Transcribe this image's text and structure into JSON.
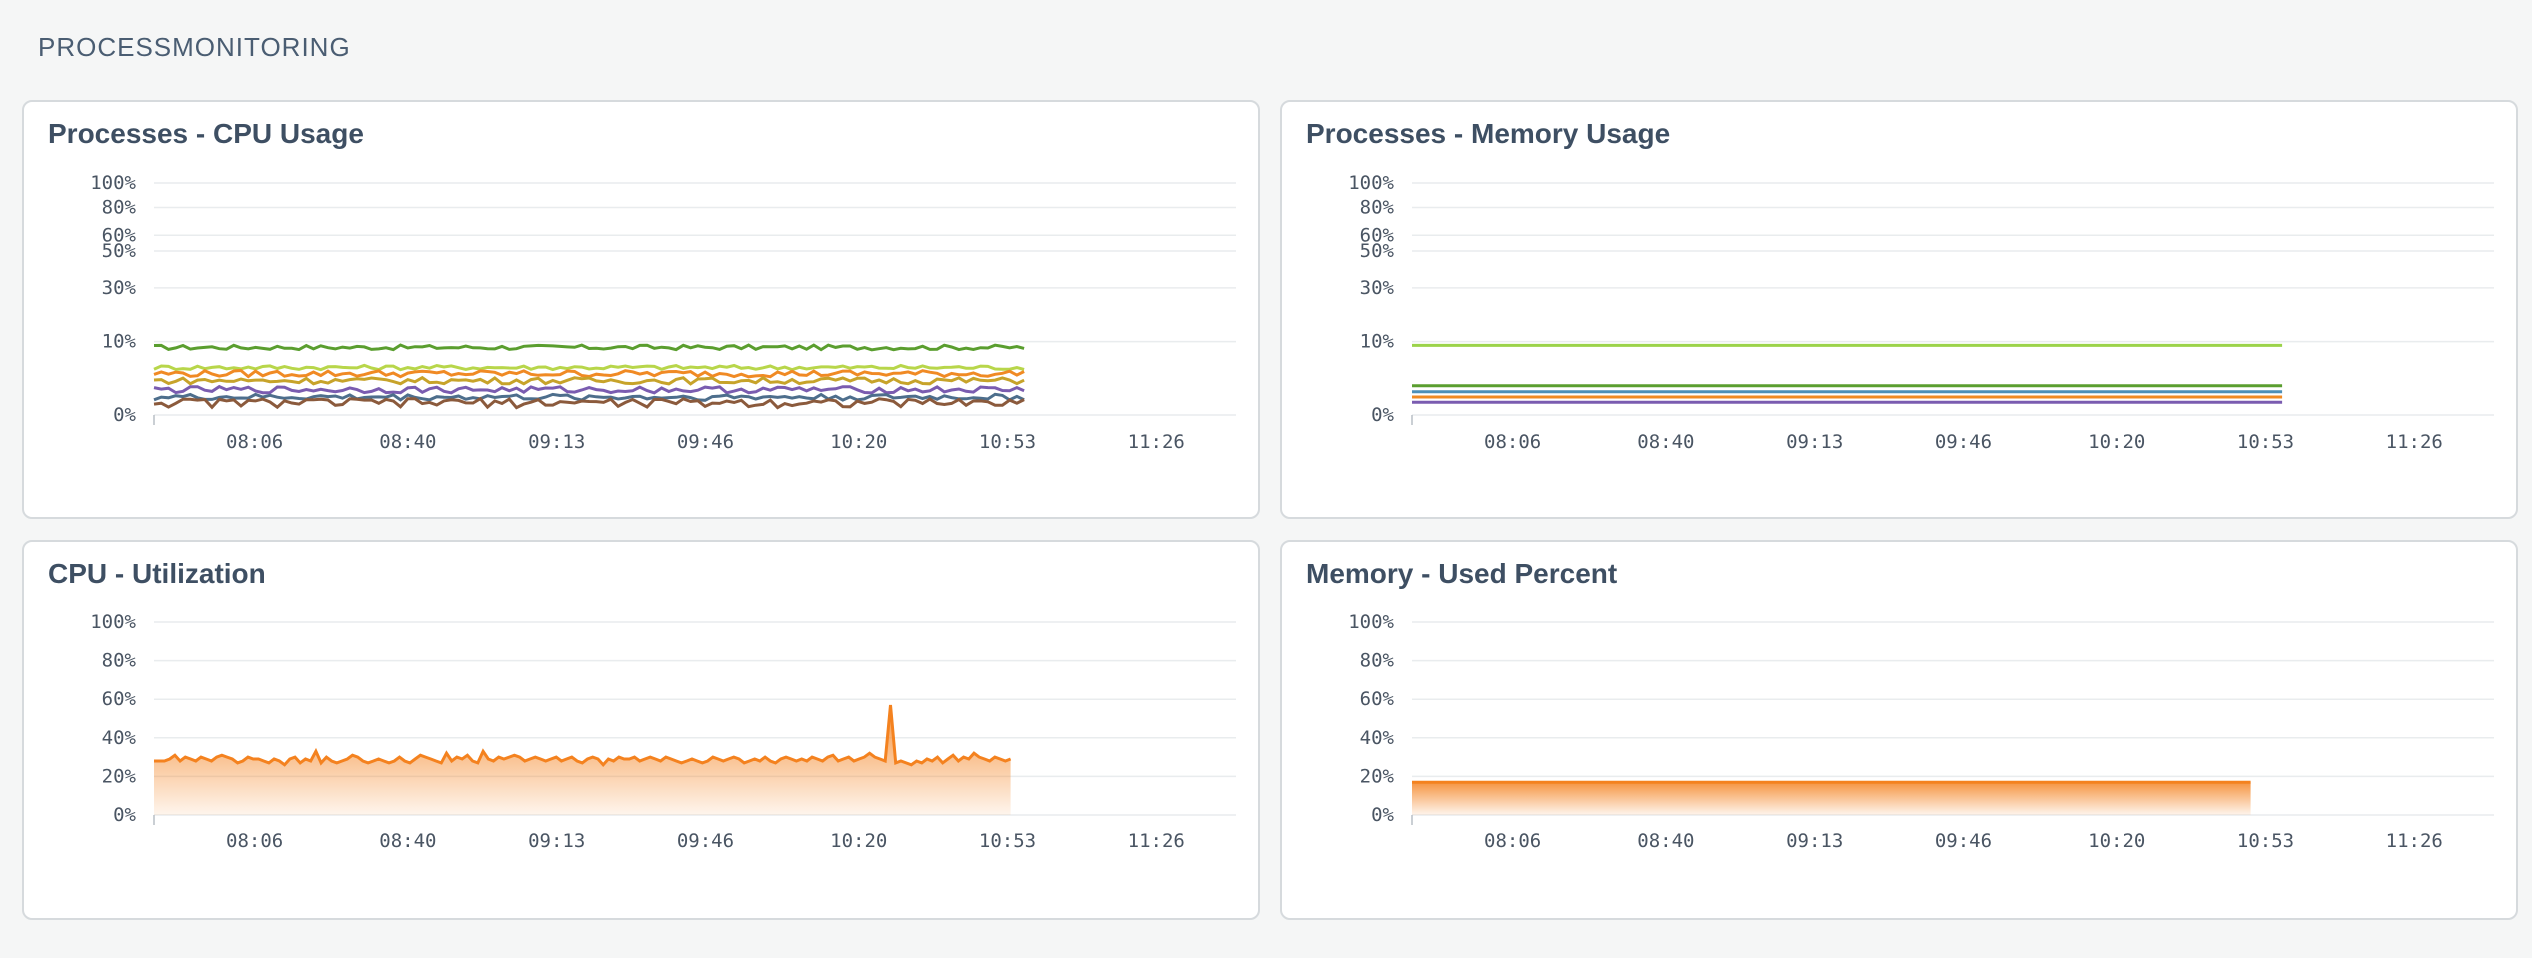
{
  "section": {
    "title": "PROCESSMONITORING"
  },
  "x_ticks": [
    "08:06",
    "08:40",
    "09:13",
    "09:46",
    "10:20",
    "10:53",
    "11:26"
  ],
  "panels": [
    {
      "title": "Processes - CPU Usage",
      "chart_data": {
        "type": "line",
        "title": "Processes - CPU Usage",
        "y_ticks": [
          "100%",
          "80%",
          "60%",
          "50%",
          "30%",
          "10%",
          "0%"
        ],
        "y_tick_values": [
          100,
          80,
          60,
          50,
          30,
          10,
          0
        ],
        "ylim": [
          0,
          100
        ],
        "x_ticks": [
          "08:06",
          "08:40",
          "09:13",
          "09:46",
          "10:20",
          "10:53",
          "11:26"
        ],
        "x_range_minutes": [
          460,
          700
        ],
        "data_x_range_minutes": [
          460,
          653
        ],
        "y_scale": "sqrt",
        "series": [
          {
            "color": "#5a9e2f",
            "base": 8.5,
            "jitter": 0.6
          },
          {
            "color": "#b8d64a",
            "base": 4.2,
            "jitter": 0.4
          },
          {
            "color": "#f08a24",
            "base": 3.2,
            "jitter": 0.5
          },
          {
            "color": "#c7a32a",
            "base": 2.2,
            "jitter": 0.4
          },
          {
            "color": "#7a5cb0",
            "base": 1.2,
            "jitter": 0.3
          },
          {
            "color": "#4d6e8c",
            "base": 0.6,
            "jitter": 0.2
          },
          {
            "color": "#8b5a3c",
            "base": 0.3,
            "jitter": 0.2
          }
        ],
        "grid": true
      }
    },
    {
      "title": "Processes - Memory Usage",
      "chart_data": {
        "type": "line",
        "title": "Processes - Memory Usage",
        "y_ticks": [
          "100%",
          "80%",
          "60%",
          "50%",
          "30%",
          "10%",
          "0%"
        ],
        "y_tick_values": [
          100,
          80,
          60,
          50,
          30,
          10,
          0
        ],
        "ylim": [
          0,
          100
        ],
        "x_ticks": [
          "08:06",
          "08:40",
          "09:13",
          "09:46",
          "10:20",
          "10:53",
          "11:26"
        ],
        "x_range_minutes": [
          460,
          700
        ],
        "data_x_range_minutes": [
          460,
          653
        ],
        "y_scale": "sqrt",
        "series": [
          {
            "color": "#9bd34a",
            "base": 9.0,
            "jitter": 0
          },
          {
            "color": "#5a9e2f",
            "base": 1.6,
            "jitter": 0
          },
          {
            "color": "#4d8fb8",
            "base": 1.0,
            "jitter": 0
          },
          {
            "color": "#f08a24",
            "base": 0.6,
            "jitter": 0
          },
          {
            "color": "#7a5cb0",
            "base": 0.3,
            "jitter": 0
          }
        ],
        "grid": true
      }
    },
    {
      "title": "CPU - Utilization",
      "chart_data": {
        "type": "area",
        "title": "CPU - Utilization",
        "y_ticks": [
          "100%",
          "80%",
          "60%",
          "40%",
          "20%",
          "0%"
        ],
        "y_tick_values": [
          100,
          80,
          60,
          40,
          20,
          0
        ],
        "ylim": [
          0,
          100
        ],
        "x_ticks": [
          "08:06",
          "08:40",
          "09:13",
          "09:46",
          "10:20",
          "10:53",
          "11:26"
        ],
        "x_range_minutes": [
          460,
          700
        ],
        "data_x_range_minutes": [
          460,
          650
        ],
        "y_scale": "linear",
        "color": "#f4821f",
        "values": [
          28,
          28,
          28,
          29,
          31,
          28,
          30,
          29,
          28,
          30,
          29,
          28,
          30,
          31,
          30,
          29,
          27,
          28,
          30,
          29,
          29,
          28,
          27,
          29,
          28,
          26,
          29,
          30,
          27,
          29,
          28,
          33,
          27,
          30,
          28,
          27,
          28,
          29,
          31,
          30,
          28,
          27,
          28,
          29,
          28,
          27,
          28,
          30,
          28,
          27,
          29,
          31,
          30,
          29,
          28,
          27,
          32,
          28,
          30,
          29,
          31,
          28,
          27,
          33,
          29,
          28,
          30,
          29,
          30,
          31,
          30,
          28,
          29,
          30,
          29,
          28,
          29,
          30,
          28,
          29,
          30,
          28,
          27,
          29,
          30,
          29,
          26,
          29,
          28,
          30,
          29,
          29,
          30,
          28,
          29,
          30,
          29,
          28,
          30,
          29,
          28,
          27,
          28,
          29,
          28,
          27,
          28,
          30,
          29,
          28,
          29,
          30,
          29,
          27,
          28,
          29,
          28,
          30,
          28,
          27,
          29,
          30,
          29,
          28,
          29,
          28,
          30,
          29,
          28,
          30,
          31,
          28,
          29,
          30,
          28,
          29,
          30,
          32,
          30,
          29,
          28,
          57,
          27,
          28,
          27,
          26,
          28,
          27,
          29,
          28,
          30,
          27,
          29,
          31,
          28,
          30,
          29,
          32,
          30,
          29,
          28,
          30,
          29,
          28,
          29
        ],
        "grid": true
      }
    },
    {
      "title": "Memory - Used Percent",
      "chart_data": {
        "type": "area",
        "title": "Memory - Used Percent",
        "y_ticks": [
          "100%",
          "80%",
          "60%",
          "40%",
          "20%",
          "0%"
        ],
        "y_tick_values": [
          100,
          80,
          60,
          40,
          20,
          0
        ],
        "ylim": [
          0,
          100
        ],
        "x_ticks": [
          "08:06",
          "08:40",
          "09:13",
          "09:46",
          "10:20",
          "10:53",
          "11:26"
        ],
        "x_range_minutes": [
          460,
          700
        ],
        "data_x_range_minutes": [
          460,
          646
        ],
        "y_scale": "linear",
        "color": "#f4821f",
        "values": [
          17,
          17,
          17,
          17,
          17,
          17,
          17,
          17,
          17,
          17,
          17,
          17,
          17,
          17,
          17,
          17,
          17,
          17,
          17,
          17
        ],
        "grid": true
      }
    }
  ]
}
